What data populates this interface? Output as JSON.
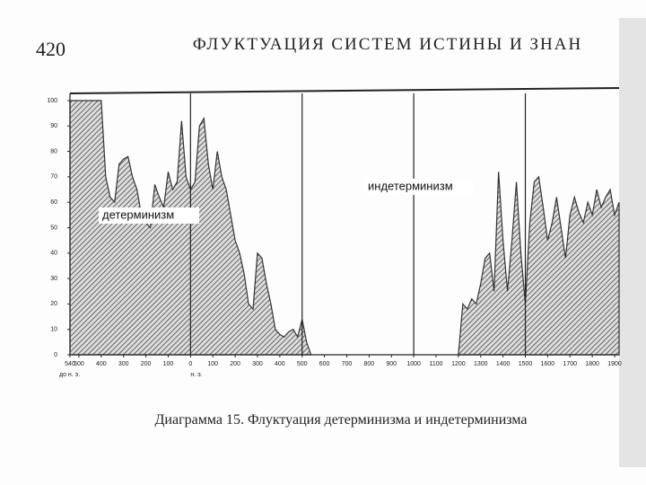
{
  "page": {
    "number": "420",
    "running_head": "ФЛУКТУАЦИЯ СИСТЕМ ИСТИНЫ И ЗНАН",
    "caption": "Диаграмма 15. Флуктуация детерминизма и индетерминизма"
  },
  "chart_data": {
    "type": "area",
    "era_labels": [
      "до н. э.",
      "н. э."
    ],
    "xlim": [
      -540,
      1920
    ],
    "ylim": [
      0,
      100
    ],
    "yticks": [
      0,
      10,
      20,
      30,
      40,
      50,
      60,
      70,
      80,
      90,
      100
    ],
    "xticks": [
      {
        "value": -540,
        "label": "540"
      },
      {
        "value": -500,
        "label": "500"
      },
      {
        "value": -400,
        "label": "400"
      },
      {
        "value": -300,
        "label": "300"
      },
      {
        "value": -200,
        "label": "200"
      },
      {
        "value": -100,
        "label": "100"
      },
      0,
      100,
      200,
      300,
      400,
      500,
      600,
      700,
      800,
      900,
      1000,
      1100,
      1200,
      1300,
      1400,
      1500,
      1600,
      1700,
      1800,
      1900
    ],
    "dividers": [
      0,
      500,
      1000,
      1500
    ],
    "series": [
      {
        "name": "детерминизм",
        "color": "#333333",
        "x": [
          -540,
          -400,
          -380,
          -360,
          -340,
          -320,
          -300,
          -280,
          -260,
          -240,
          -220,
          -200,
          -180,
          -160,
          -140,
          -120,
          -100,
          -80,
          -60,
          -40,
          -20,
          0,
          20,
          40,
          60,
          80,
          100,
          120,
          140,
          160,
          180,
          200,
          220,
          240,
          260,
          280,
          300,
          320,
          340,
          360,
          380,
          400,
          420,
          440,
          460,
          480,
          500,
          520,
          540
        ],
        "values": [
          100,
          100,
          70,
          62,
          60,
          75,
          77,
          78,
          70,
          65,
          55,
          52,
          50,
          67,
          62,
          58,
          72,
          65,
          68,
          92,
          70,
          65,
          68,
          90,
          93,
          75,
          65,
          80,
          70,
          65,
          55,
          45,
          40,
          32,
          20,
          18,
          40,
          38,
          28,
          20,
          10,
          8,
          7,
          9,
          10,
          7,
          14,
          5,
          0
        ]
      },
      {
        "name": "индетерминизм",
        "color": "#333333",
        "x": [
          1200,
          1220,
          1240,
          1260,
          1280,
          1300,
          1320,
          1340,
          1360,
          1380,
          1400,
          1420,
          1440,
          1460,
          1480,
          1500,
          1520,
          1540,
          1560,
          1580,
          1600,
          1620,
          1640,
          1660,
          1680,
          1700,
          1720,
          1740,
          1760,
          1780,
          1800,
          1820,
          1840,
          1860,
          1880,
          1900,
          1920
        ],
        "values": [
          0,
          20,
          18,
          22,
          20,
          28,
          38,
          40,
          25,
          72,
          45,
          25,
          45,
          68,
          40,
          20,
          52,
          68,
          70,
          58,
          45,
          52,
          62,
          50,
          38,
          55,
          62,
          56,
          52,
          60,
          55,
          65,
          58,
          62,
          65,
          55,
          60
        ]
      }
    ]
  }
}
